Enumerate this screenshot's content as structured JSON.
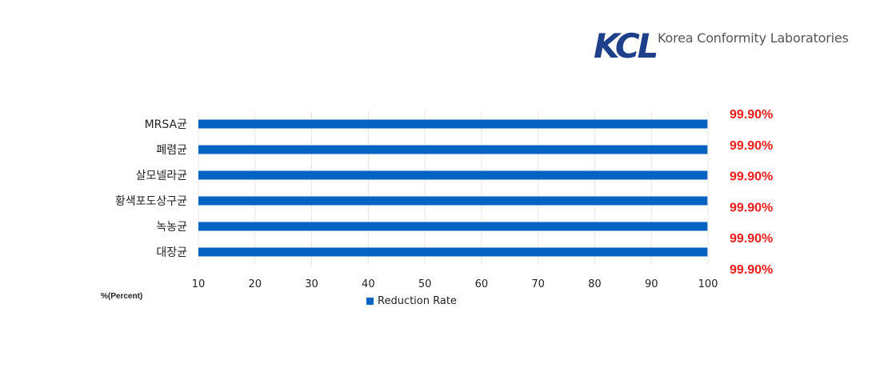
{
  "logo": {
    "mark": "KCL",
    "name": "Korea Conformity Laboratories",
    "colors": {
      "mark": "#1e3f8a",
      "accent": "#6db33f"
    }
  },
  "chart_data": {
    "type": "bar",
    "orientation": "horizontal",
    "categories": [
      "MRSA균",
      "폐렴균",
      "살모넬라균",
      "황색포도상구균",
      "녹농균",
      "대장균"
    ],
    "series": [
      {
        "name": "Reduction Rate",
        "values": [
          99.9,
          99.9,
          99.9,
          99.9,
          99.9,
          99.9
        ],
        "color": "#0563c1"
      }
    ],
    "value_labels": [
      "99.90%",
      "99.90%",
      "99.90%",
      "99.90%",
      "99.90%",
      "99.90%"
    ],
    "xlim": [
      10,
      100
    ],
    "xticks": [
      10,
      20,
      30,
      40,
      50,
      60,
      70,
      80,
      90,
      100
    ],
    "unit_label": "%(Percent)",
    "grid": true,
    "legend_position": "bottom",
    "value_label_color": "#ee1c1c"
  }
}
